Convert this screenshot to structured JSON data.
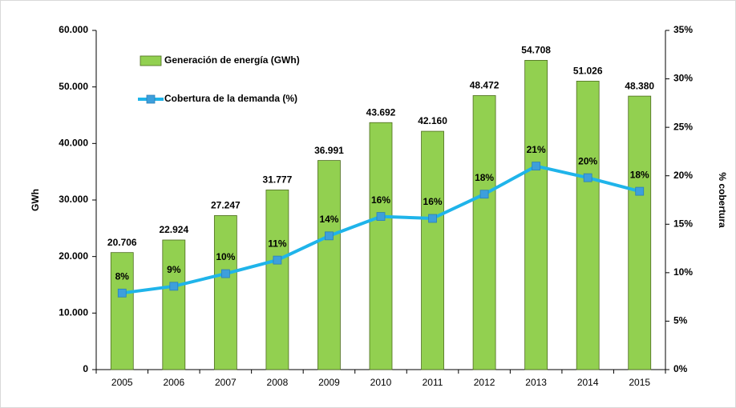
{
  "chart_data": {
    "type": "bar",
    "categories": [
      "2005",
      "2006",
      "2007",
      "2008",
      "2009",
      "2010",
      "2011",
      "2012",
      "2013",
      "2014",
      "2015"
    ],
    "series": [
      {
        "name": "Generación de energía (GWh)",
        "type": "bar",
        "color": "#92d050",
        "values": [
          20706,
          22924,
          27247,
          31777,
          36991,
          43692,
          42160,
          48472,
          54708,
          51026,
          48380
        ],
        "value_labels": [
          "20.706",
          "22.924",
          "27.247",
          "31.777",
          "36.991",
          "43.692",
          "42.160",
          "48.472",
          "54.708",
          "51.026",
          "48.380"
        ]
      },
      {
        "name": "Cobertura de la demanda (%)",
        "type": "line",
        "axis": "y2",
        "color": "#1fb4ea",
        "marker_color": "#3d9fdc",
        "values": [
          7.9,
          8.6,
          9.9,
          11.3,
          13.8,
          15.8,
          15.6,
          18.1,
          21.0,
          19.8,
          18.4
        ],
        "value_labels": [
          "8%",
          "9%",
          "10%",
          "11%",
          "14%",
          "16%",
          "16%",
          "18%",
          "21%",
          "20%",
          "18%"
        ]
      }
    ],
    "ylabel": "GWh",
    "y2label": "% cobertura",
    "ylim": [
      0,
      60000
    ],
    "yticks": [
      0,
      {
        "value": 10000,
        "label": "10.000"
      },
      {
        "value": 20000,
        "label": "20.000"
      },
      {
        "value": 30000,
        "label": "30.000"
      },
      {
        "value": 40000,
        "label": "40.000"
      },
      {
        "value": 50000,
        "label": "50.000"
      },
      {
        "value": 60000,
        "label": "60.000"
      }
    ],
    "y2lim": [
      0,
      35
    ],
    "y2ticks": [
      {
        "value": 0,
        "label": "0%"
      },
      {
        "value": 5,
        "label": "5%"
      },
      {
        "value": 10,
        "label": "10%"
      },
      {
        "value": 15,
        "label": "15%"
      },
      {
        "value": 20,
        "label": "20%"
      },
      {
        "value": 25,
        "label": "25%"
      },
      {
        "value": 30,
        "label": "30%"
      },
      {
        "value": 35,
        "label": "35%"
      }
    ],
    "grid": false,
    "legend": "upper left"
  }
}
